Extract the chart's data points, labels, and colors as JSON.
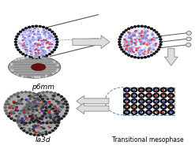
{
  "background_color": "#ffffff",
  "labels": {
    "p6mm": "p6mm",
    "ia3d": "Ia3d",
    "transitional": "Transitional mesophase"
  },
  "label_positions": {
    "p6mm": [
      0.22,
      0.415
    ],
    "ia3d": [
      0.22,
      0.055
    ],
    "transitional": [
      0.76,
      0.055
    ]
  },
  "label_fontsizes": {
    "p6mm": 6.5,
    "ia3d": 6.5,
    "transitional": 5.5
  },
  "fig_width": 2.47,
  "fig_height": 1.89,
  "dpi": 100
}
